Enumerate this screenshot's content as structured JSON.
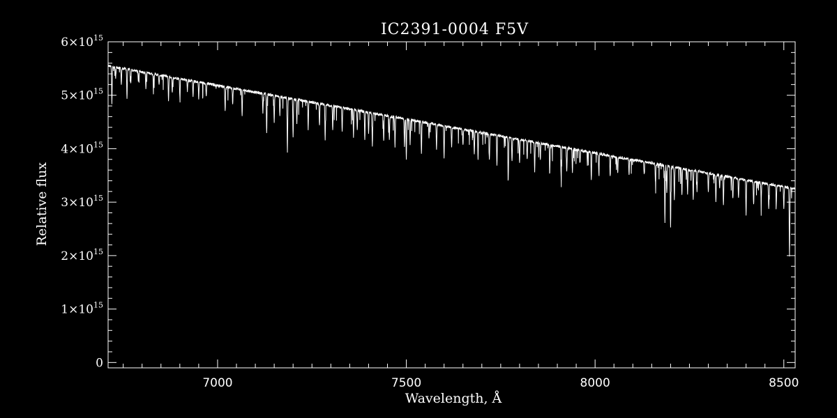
{
  "chart_data": {
    "type": "line",
    "title": "IC2391-0004  F5V",
    "xlabel": "Wavelength, Å",
    "ylabel": "Relative flux",
    "xlim": [
      6710,
      8530
    ],
    "ylim": [
      -0.1,
      6.0
    ],
    "y_multiplier_label": "10",
    "y_exponent": "15",
    "y_times": "×",
    "x_ticks": [
      7000,
      7500,
      8000,
      8500
    ],
    "x_tick_labels": [
      "7000",
      "7500",
      "8000",
      "8500"
    ],
    "y_ticks": [
      0,
      1,
      2,
      3,
      4,
      5,
      6
    ],
    "y_tick_labels": [
      "0",
      "1",
      "2",
      "3",
      "4",
      "5",
      "6"
    ],
    "grid": false,
    "legend": "none",
    "colors": {
      "background": "#000000",
      "foreground": "#ffffff"
    },
    "series": [
      {
        "continuum": {
          "x": [
            6710,
            8530
          ],
          "y": [
            5.55,
            3.25
          ]
        },
        "absorption_lines": {
          "x": [
            6720,
            6730,
            6745,
            6760,
            6770,
            6790,
            6810,
            6830,
            6845,
            6870,
            6880,
            6900,
            6920,
            6935,
            6950,
            6970,
            7020,
            7040,
            7065,
            7120,
            7130,
            7150,
            7165,
            7185,
            7200,
            7210,
            7240,
            7270,
            7285,
            7305,
            7330,
            7360,
            7370,
            7390,
            7400,
            7410,
            7440,
            7455,
            7470,
            7495,
            7500,
            7510,
            7540,
            7560,
            7580,
            7600,
            7620,
            7650,
            7680,
            7690,
            7720,
            7740,
            7770,
            7780,
            7800,
            7820,
            7840,
            7855,
            7880,
            7910,
            7925,
            7940,
            7960,
            7990,
            8010,
            8040,
            8060,
            8090,
            8130,
            8160,
            8185,
            8190,
            8200,
            8210,
            8230,
            8245,
            8260,
            8270,
            8300,
            8320,
            8330,
            8340,
            8365,
            8380,
            8400,
            8420,
            8440,
            8460,
            8480,
            8500,
            8515
          ],
          "depth": [
            0.7,
            0.2,
            0.3,
            0.55,
            0.25,
            0.2,
            0.3,
            0.25,
            0.2,
            0.45,
            0.3,
            0.35,
            0.2,
            0.3,
            0.3,
            0.25,
            0.45,
            0.3,
            0.5,
            0.35,
            0.75,
            0.5,
            0.35,
            1.0,
            0.7,
            0.45,
            0.5,
            0.4,
            0.65,
            0.45,
            0.45,
            0.5,
            0.35,
            0.55,
            0.4,
            0.6,
            0.5,
            0.45,
            0.55,
            0.5,
            0.75,
            0.45,
            0.6,
            0.3,
            0.45,
            0.6,
            0.35,
            0.3,
            0.45,
            0.5,
            0.5,
            0.55,
            0.8,
            0.45,
            0.45,
            0.35,
            0.55,
            0.3,
            0.5,
            0.55,
            0.45,
            0.45,
            0.25,
            0.5,
            0.35,
            0.4,
            0.3,
            0.3,
            0.25,
            0.35,
            1.05,
            0.5,
            1.15,
            0.6,
            0.5,
            0.45,
            0.55,
            0.4,
            0.35,
            0.5,
            0.25,
            0.55,
            0.4,
            0.35,
            0.65,
            0.45,
            0.35,
            0.45,
            0.35,
            0.4,
            1.3
          ]
        }
      }
    ]
  }
}
